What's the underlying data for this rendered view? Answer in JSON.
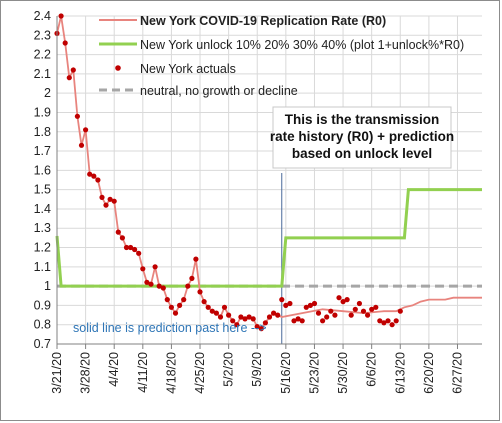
{
  "chart_data": {
    "type": "line",
    "title": "",
    "xlabel": "",
    "ylabel": "",
    "ylim": [
      0.7,
      2.4
    ],
    "yticks": [
      0.7,
      0.8,
      0.9,
      1,
      1.1,
      1.2,
      1.3,
      1.4,
      1.5,
      1.6,
      1.7,
      1.8,
      1.9,
      2,
      2.1,
      2.2,
      2.3,
      2.4
    ],
    "ytick_labels": [
      "0.7",
      "0.8",
      "0.9",
      "1",
      "1.1",
      "1.2",
      "1.3",
      "1.4",
      "1.5",
      "1.6",
      "1.7",
      "1.8",
      "1.9",
      "2",
      "2.1",
      "2.2",
      "2.3",
      "2.4"
    ],
    "x_start": "3/21/20",
    "x_end": "7/3/20",
    "xtick_labels": [
      "3/21/20",
      "3/28/20",
      "4/4/20",
      "4/11/20",
      "4/18/20",
      "4/25/20",
      "5/2/20",
      "5/9/20",
      "5/16/20",
      "5/23/20",
      "5/30/20",
      "6/6/20",
      "6/13/20",
      "6/20/20",
      "6/27/20"
    ],
    "grid": true,
    "legend_position": "top",
    "colors": {
      "replication": "#e8847e",
      "unlock": "#92d050",
      "actuals": "#c00000",
      "neutral": "#a6a6a6",
      "note": "#2e75b6",
      "marker_line": "#4a6a9a"
    },
    "series": [
      {
        "name": "New York COVID-19 Replication Rate (R0)",
        "style": "line",
        "x": [
          "3/21/20",
          "3/22/20",
          "3/23/20",
          "3/24/20",
          "3/25/20",
          "3/26/20",
          "3/27/20",
          "3/28/20",
          "3/29/20",
          "3/30/20",
          "3/31/20",
          "4/1/20",
          "4/2/20",
          "4/3/20",
          "4/4/20",
          "4/5/20",
          "4/6/20",
          "4/7/20",
          "4/8/20",
          "4/9/20",
          "4/10/20",
          "4/11/20",
          "4/12/20",
          "4/13/20",
          "4/14/20",
          "4/15/20",
          "4/16/20",
          "4/17/20",
          "4/18/20",
          "4/19/20",
          "4/20/20",
          "4/21/20",
          "4/22/20",
          "4/23/20",
          "4/24/20",
          "4/25/20",
          "4/26/20",
          "4/27/20",
          "4/28/20",
          "4/29/20",
          "4/30/20",
          "5/1/20",
          "5/2/20",
          "5/3/20",
          "5/4/20",
          "5/5/20",
          "5/6/20",
          "5/7/20",
          "5/8/20",
          "5/9/20",
          "5/10/20",
          "5/11/20",
          "5/12/20",
          "5/13/20",
          "5/14/20",
          "5/15/20",
          "5/20/20",
          "5/25/20",
          "5/30/20",
          "6/4/20",
          "6/9/20",
          "6/12/20",
          "6/14/20",
          "6/16/20",
          "6/18/20",
          "6/20/20",
          "6/22/20",
          "6/24/20",
          "6/26/20",
          "6/28/20",
          "7/1/20",
          "7/3/20"
        ],
        "values": [
          2.31,
          2.4,
          2.26,
          2.08,
          2.12,
          1.88,
          1.73,
          1.81,
          1.58,
          1.57,
          1.55,
          1.46,
          1.42,
          1.45,
          1.44,
          1.28,
          1.25,
          1.2,
          1.2,
          1.19,
          1.17,
          1.09,
          1.02,
          1.01,
          1.1,
          1.0,
          0.99,
          0.93,
          0.89,
          0.86,
          0.9,
          0.93,
          1.0,
          1.04,
          1.14,
          0.97,
          0.92,
          0.89,
          0.87,
          0.86,
          0.84,
          0.89,
          0.85,
          0.82,
          0.8,
          0.84,
          0.83,
          0.84,
          0.83,
          0.79,
          0.78,
          0.81,
          0.84,
          0.86,
          0.85,
          0.84,
          0.86,
          0.88,
          0.87,
          0.86,
          0.87,
          0.87,
          0.89,
          0.9,
          0.92,
          0.93,
          0.93,
          0.93,
          0.94,
          0.94,
          0.94,
          0.94
        ]
      },
      {
        "name": "New York unlock  10% 20% 30% 40% (plot 1+unlock%*R0)",
        "style": "step",
        "x": [
          "3/21/20",
          "3/22/20",
          "5/15/20",
          "5/16/20",
          "6/14/20",
          "6/15/20",
          "7/3/20"
        ],
        "values": [
          1.26,
          1.0,
          1.0,
          1.25,
          1.25,
          1.5,
          1.5
        ]
      },
      {
        "name": "New York actuals",
        "style": "points",
        "x": [
          "3/21/20",
          "3/22/20",
          "3/23/20",
          "3/24/20",
          "3/25/20",
          "3/26/20",
          "3/27/20",
          "3/28/20",
          "3/29/20",
          "3/30/20",
          "3/31/20",
          "4/1/20",
          "4/2/20",
          "4/3/20",
          "4/4/20",
          "4/5/20",
          "4/6/20",
          "4/7/20",
          "4/8/20",
          "4/9/20",
          "4/10/20",
          "4/11/20",
          "4/12/20",
          "4/13/20",
          "4/14/20",
          "4/15/20",
          "4/16/20",
          "4/17/20",
          "4/18/20",
          "4/19/20",
          "4/20/20",
          "4/21/20",
          "4/22/20",
          "4/23/20",
          "4/24/20",
          "4/25/20",
          "4/26/20",
          "4/27/20",
          "4/28/20",
          "4/29/20",
          "4/30/20",
          "5/1/20",
          "5/2/20",
          "5/3/20",
          "5/4/20",
          "5/5/20",
          "5/6/20",
          "5/7/20",
          "5/8/20",
          "5/9/20",
          "5/10/20",
          "5/11/20",
          "5/12/20",
          "5/13/20",
          "5/14/20",
          "5/15/20",
          "5/16/20",
          "5/17/20",
          "5/18/20",
          "5/19/20",
          "5/20/20",
          "5/21/20",
          "5/22/20",
          "5/23/20",
          "5/24/20",
          "5/25/20",
          "5/26/20",
          "5/27/20",
          "5/28/20",
          "5/29/20",
          "5/30/20",
          "5/31/20",
          "6/1/20",
          "6/2/20",
          "6/3/20",
          "6/4/20",
          "6/5/20",
          "6/6/20",
          "6/7/20",
          "6/8/20",
          "6/9/20",
          "6/10/20",
          "6/11/20",
          "6/12/20",
          "6/13/20"
        ],
        "values": [
          2.31,
          2.4,
          2.26,
          2.08,
          2.12,
          1.88,
          1.73,
          1.81,
          1.58,
          1.57,
          1.55,
          1.46,
          1.42,
          1.45,
          1.44,
          1.28,
          1.25,
          1.2,
          1.2,
          1.19,
          1.17,
          1.09,
          1.02,
          1.01,
          1.1,
          1.0,
          0.99,
          0.93,
          0.89,
          0.86,
          0.9,
          0.93,
          1.0,
          1.04,
          1.14,
          0.97,
          0.92,
          0.89,
          0.87,
          0.86,
          0.84,
          0.89,
          0.85,
          0.82,
          0.8,
          0.84,
          0.83,
          0.84,
          0.83,
          0.79,
          0.78,
          0.81,
          0.84,
          0.86,
          0.85,
          0.93,
          0.9,
          0.91,
          0.82,
          0.83,
          0.82,
          0.89,
          0.9,
          0.91,
          0.86,
          0.82,
          0.84,
          0.87,
          0.85,
          0.94,
          0.92,
          0.93,
          0.85,
          0.88,
          0.91,
          0.87,
          0.85,
          0.88,
          0.89,
          0.82,
          0.81,
          0.82,
          0.8,
          0.82,
          0.87
        ]
      },
      {
        "name": "neutral, no growth or decline",
        "style": "dashed",
        "x": [
          "3/21/20",
          "7/3/20"
        ],
        "values": [
          1.0,
          1.0
        ]
      }
    ],
    "prediction_start": "5/15/20",
    "annotations": [
      {
        "text": "This is the transmission rate history (R0) + prediction based on unlock level",
        "lines": [
          "This is the transmission",
          "rate history (R0) + prediction",
          "based on unlock level"
        ]
      },
      {
        "text": "solid line is prediction past here -->"
      }
    ]
  }
}
